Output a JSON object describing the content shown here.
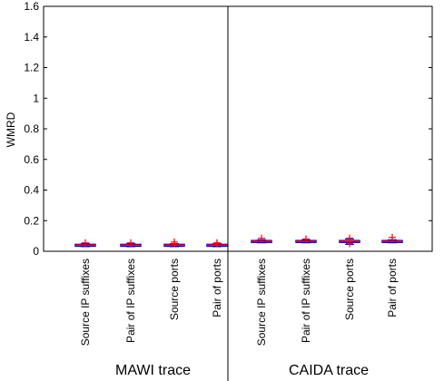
{
  "chart_data": {
    "type": "box",
    "ylabel": "WMRD",
    "ylim": [
      0,
      1.6
    ],
    "yticks": [
      "0",
      "0.2",
      "0.4",
      "0.6",
      "0.8",
      "1",
      "1.2",
      "1.4",
      "1.6"
    ],
    "groups": [
      {
        "name": "MAWI trace",
        "categories": [
          "Source IP suffixes",
          "Pair of IP suffixes",
          "Source ports",
          "Pair of ports"
        ],
        "boxes": [
          {
            "q1": 0.035,
            "median": 0.04,
            "q3": 0.045,
            "whisker_low": 0.03,
            "whisker_high": 0.05,
            "outliers": [
              0.055
            ]
          },
          {
            "q1": 0.035,
            "median": 0.04,
            "q3": 0.045,
            "whisker_low": 0.03,
            "whisker_high": 0.05,
            "outliers": [
              0.055
            ]
          },
          {
            "q1": 0.035,
            "median": 0.04,
            "q3": 0.045,
            "whisker_low": 0.03,
            "whisker_high": 0.05,
            "outliers": [
              0.06,
              0.05
            ]
          },
          {
            "q1": 0.035,
            "median": 0.04,
            "q3": 0.045,
            "whisker_low": 0.03,
            "whisker_high": 0.05,
            "outliers": [
              0.055,
              0.05
            ]
          }
        ]
      },
      {
        "name": "CAIDA trace",
        "categories": [
          "Source IP suffixes",
          "Pair of IP suffixes",
          "Source ports",
          "Pair of ports"
        ],
        "boxes": [
          {
            "q1": 0.06,
            "median": 0.065,
            "q3": 0.07,
            "whisker_low": 0.055,
            "whisker_high": 0.075,
            "outliers": [
              0.085
            ]
          },
          {
            "q1": 0.06,
            "median": 0.065,
            "q3": 0.07,
            "whisker_low": 0.055,
            "whisker_high": 0.075,
            "outliers": [
              0.08
            ]
          },
          {
            "q1": 0.06,
            "median": 0.065,
            "q3": 0.07,
            "whisker_low": 0.045,
            "whisker_high": 0.08,
            "outliers": [
              0.085,
              0.05
            ]
          },
          {
            "q1": 0.06,
            "median": 0.065,
            "q3": 0.07,
            "whisker_low": 0.055,
            "whisker_high": 0.075,
            "outliers": [
              0.09
            ]
          }
        ]
      }
    ],
    "colors": {
      "box": "#0000ff",
      "median": "#ff0000",
      "outlier": "#ff0000",
      "axis": "#000000"
    }
  }
}
